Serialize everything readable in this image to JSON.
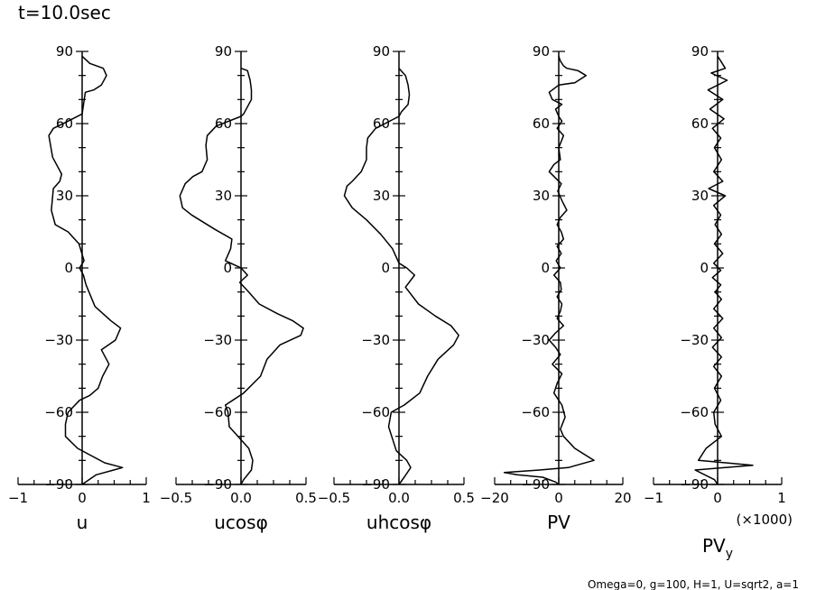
{
  "figure": {
    "title": "t=10.0sec",
    "footnote": "Omega=0, g=100, H=1, U=sqrt2, a=1",
    "colors": {
      "line": "#000000",
      "background": "#ffffff"
    }
  },
  "chart_data": [
    {
      "type": "line",
      "xlabel": "u",
      "xlim": [
        -1,
        1
      ],
      "xticks": [
        -1,
        0,
        1
      ],
      "xtick_labels": [
        "−1",
        "0",
        "1"
      ],
      "ylim": [
        -90,
        90
      ],
      "yticks": [
        -90,
        -60,
        -30,
        0,
        30,
        60,
        90
      ],
      "ytick_labels": [
        "−90",
        "−60",
        "−30",
        "0",
        "30",
        "60",
        "90"
      ],
      "series": [
        {
          "x": [
            0.0,
            0.12,
            0.33,
            0.38,
            0.3,
            0.18,
            0.05,
            0.0,
            -0.22,
            -0.45,
            -0.52,
            -0.46,
            -0.32,
            -0.35,
            -0.45,
            -0.48,
            -0.42,
            -0.22,
            -0.05,
            0.03,
            -0.04,
            0.02,
            0.06,
            0.2,
            0.45,
            0.6,
            0.52,
            0.3,
            0.42,
            0.32,
            0.25,
            0.12,
            -0.04,
            -0.22,
            -0.26,
            -0.26,
            -0.07,
            0.35,
            0.63,
            0.22,
            0.0
          ],
          "y": [
            88,
            85,
            83,
            80,
            76,
            74,
            73,
            64,
            61,
            58,
            55,
            46,
            39,
            36,
            33,
            24,
            18,
            15,
            10,
            3,
            0,
            -3,
            -7,
            -16,
            -22,
            -25,
            -30,
            -34,
            -40,
            -45,
            -50,
            -53,
            -55,
            -60,
            -65,
            -70,
            -75,
            -81,
            -83,
            -86,
            -90
          ]
        }
      ]
    },
    {
      "type": "line",
      "xlabel": "ucosφ",
      "xlim": [
        -0.5,
        0.5
      ],
      "xticks": [
        -0.5,
        0,
        0.5
      ],
      "xtick_labels": [
        "−0.5",
        "0.0",
        "0.5"
      ],
      "series": [
        {
          "x": [
            0.0,
            0.05,
            0.07,
            0.08,
            0.08,
            0.06,
            0.02,
            0.0,
            -0.19,
            -0.26,
            -0.27,
            -0.26,
            -0.3,
            -0.37,
            -0.43,
            -0.47,
            -0.45,
            -0.38,
            -0.2,
            -0.07,
            -0.08,
            -0.12,
            0.0,
            0.05,
            -0.01,
            0.06,
            0.14,
            0.28,
            0.4,
            0.48,
            0.46,
            0.3,
            0.2,
            0.15,
            0.02,
            -0.12,
            -0.1,
            -0.09,
            0.06,
            0.09,
            0.08,
            0.02,
            0.0
          ],
          "y": [
            83,
            82,
            78,
            74,
            70,
            68,
            64,
            63,
            59,
            55,
            51,
            45,
            40,
            38,
            35,
            30,
            25,
            22,
            16,
            12,
            8,
            3,
            0,
            -3,
            -6,
            -10,
            -15,
            -19,
            -22,
            -25,
            -28,
            -32,
            -38,
            -45,
            -52,
            -57,
            -60,
            -66,
            -75,
            -80,
            -84,
            -88,
            -90
          ]
        }
      ]
    },
    {
      "type": "line",
      "xlabel": "uhcosφ",
      "xlim": [
        -0.5,
        0.5
      ],
      "xticks": [
        -0.5,
        0,
        0.5
      ],
      "xtick_labels": [
        "−0.5",
        "0.0",
        "0.5"
      ],
      "series": [
        {
          "x": [
            0.0,
            0.05,
            0.07,
            0.08,
            0.07,
            0.02,
            0.0,
            -0.18,
            -0.24,
            -0.25,
            -0.25,
            -0.29,
            -0.36,
            -0.4,
            -0.42,
            -0.36,
            -0.25,
            -0.14,
            -0.05,
            0.0,
            0.06,
            0.12,
            0.05,
            0.15,
            0.28,
            0.4,
            0.46,
            0.42,
            0.3,
            0.22,
            0.16,
            0.04,
            -0.06,
            -0.08,
            -0.02,
            0.06,
            0.09,
            0.04,
            0.0
          ],
          "y": [
            83,
            80,
            76,
            72,
            68,
            65,
            63,
            58,
            54,
            50,
            45,
            40,
            36,
            34,
            30,
            25,
            20,
            14,
            8,
            2,
            0,
            -3,
            -8,
            -15,
            -20,
            -24,
            -28,
            -32,
            -38,
            -45,
            -52,
            -57,
            -60,
            -66,
            -76,
            -80,
            -83,
            -87,
            -90
          ]
        }
      ]
    },
    {
      "type": "line",
      "xlabel": "PV",
      "xlim": [
        -20,
        20
      ],
      "xticks": [
        -20,
        0,
        20
      ],
      "xtick_labels": [
        "−20",
        "0",
        "20"
      ],
      "series": [
        {
          "x": [
            0,
            0.5,
            1.5,
            2.5,
            6,
            8.5,
            5,
            0,
            -3,
            -2,
            1,
            -1,
            0,
            1,
            -0.5,
            1.5,
            0,
            0.5,
            -1.5,
            -3,
            0.8,
            -0.3,
            1,
            2.5,
            0.5,
            -0.5,
            0.8,
            1.5,
            -0.5,
            0.8,
            -0.8,
            0.5,
            -1.5,
            0.5,
            0.8,
            -0.5,
            1,
            0.5,
            -0.5,
            1.5,
            -1,
            -3,
            -1,
            0.5,
            -2,
            1,
            -0.5,
            -1.5,
            1,
            2,
            0.5,
            1.5,
            5,
            11,
            3,
            -6,
            -17,
            -13,
            -5,
            -1,
            0
          ],
          "y": [
            88,
            86,
            84,
            83,
            82,
            80,
            77,
            76,
            73,
            70,
            68,
            66,
            63,
            61,
            58,
            55,
            50,
            45,
            43,
            40,
            35,
            32,
            28,
            24,
            21,
            18,
            15,
            12,
            9,
            6,
            3,
            0,
            -3,
            -6,
            -9,
            -12,
            -15,
            -18,
            -21,
            -24,
            -27,
            -30,
            -33,
            -36,
            -40,
            -44,
            -48,
            -52,
            -57,
            -62,
            -67,
            -70,
            -75,
            -80,
            -83,
            -84,
            -85,
            -86,
            -87,
            -89,
            -90
          ]
        }
      ]
    },
    {
      "type": "line",
      "xlabel": "PV",
      "xlabel_sub": "y",
      "x_multiplier": "(×1000)",
      "xlim": [
        -1,
        1
      ],
      "xticks": [
        -1,
        0,
        1
      ],
      "xtick_labels": [
        "−1",
        "0",
        "1"
      ],
      "series": [
        {
          "x": [
            0,
            0.05,
            0.12,
            -0.1,
            0.15,
            -0.15,
            0.08,
            -0.12,
            0.1,
            -0.08,
            0.05,
            -0.05,
            0.06,
            -0.06,
            0.08,
            -0.14,
            0.12,
            -0.06,
            0.05,
            -0.04,
            0.06,
            -0.05,
            0.08,
            -0.06,
            0.05,
            -0.08,
            0.05,
            -0.04,
            0.06,
            -0.06,
            0.08,
            -0.06,
            0.06,
            -0.08,
            0.06,
            -0.06,
            0.06,
            -0.05,
            0.05,
            -0.06,
            -0.04,
            0.06,
            -0.18,
            -0.3,
            0.55,
            -0.35,
            -0.05,
            0
          ],
          "y": [
            88,
            86,
            83,
            81,
            78,
            74,
            70,
            66,
            62,
            58,
            54,
            50,
            45,
            40,
            36,
            33,
            30,
            26,
            22,
            18,
            14,
            10,
            6,
            2,
            -1,
            -4,
            -7,
            -10,
            -13,
            -17,
            -21,
            -25,
            -29,
            -33,
            -37,
            -41,
            -45,
            -50,
            -55,
            -60,
            -65,
            -70,
            -75,
            -80,
            -82,
            -84,
            -88,
            -90
          ]
        }
      ]
    }
  ]
}
